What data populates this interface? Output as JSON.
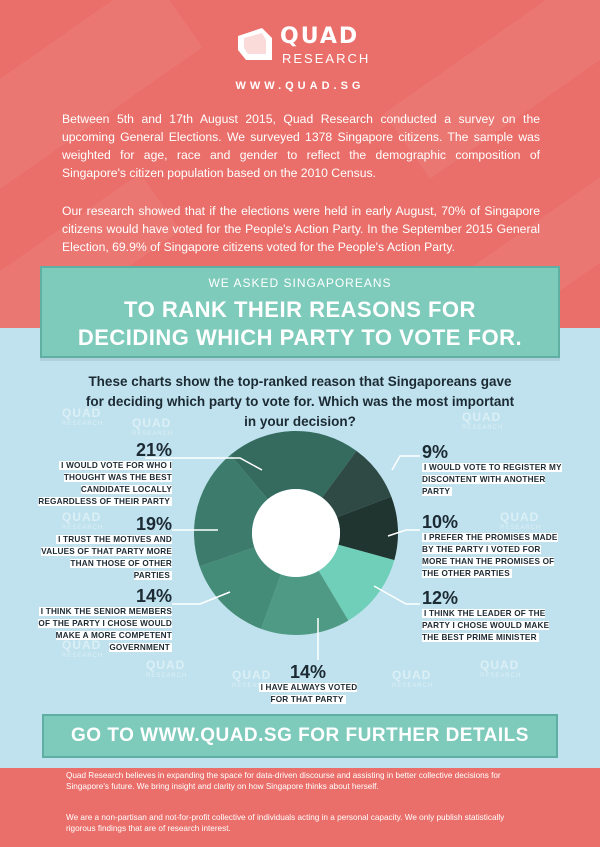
{
  "brand": {
    "name": "QUAD",
    "sub": "RESEARCH",
    "url": "WWW.QUAD.SG"
  },
  "intro": {
    "p1": "Between 5th and 17th August 2015, Quad Research conducted a survey on the upcoming General Elections. We surveyed 1378 Singapore citizens. The sample was weighted for age, race and gender to reflect the demographic composition of Singapore's citizen population based on the 2010 Census.",
    "p2": "Our research showed that if the elections were held in early August, 70% of Singapore citizens would have voted for the People's Action Party.  In the September 2015 General Election, 69.9% of Singapore citizens voted for the People's Action Party."
  },
  "banner": {
    "small": "WE ASKED SINGAPOREANS",
    "line1": "TO RANK THEIR REASONS FOR",
    "line2": "DECIDING WHICH PARTY TO VOTE FOR."
  },
  "question": "These charts show the top-ranked reason that Singaporeans gave for deciding which party to vote for. Which was the most important in your decision?",
  "chart_data": {
    "type": "pie",
    "donut": true,
    "slices": [
      {
        "pct": "21%",
        "value": 21,
        "label": "I WOULD VOTE FOR WHO I THOUGHT WAS THE BEST CANDIDATE LOCALLY REGARDLESS OF THEIR PARTY",
        "color": "#356b5f"
      },
      {
        "pct": "9%",
        "value": 9,
        "label": "I WOULD VOTE TO REGISTER MY DISCONTENT WITH ANOTHER PARTY",
        "color": "#2f4a44"
      },
      {
        "pct": "10%",
        "value": 10,
        "label": "I PREFER THE PROMISES MADE BY THE PARTY I VOTED FOR MORE THAN THE PROMISES OF THE OTHER PARTIES",
        "color": "#203530"
      },
      {
        "pct": "12%",
        "value": 12,
        "label": "I THINK THE LEADER OF THE PARTY I CHOSE WOULD MAKE THE BEST PRIME MINISTER",
        "color": "#6fcfb8"
      },
      {
        "pct": "14%",
        "value": 14,
        "label": "I HAVE ALWAYS VOTED FOR THAT PARTY",
        "color": "#4f9a84"
      },
      {
        "pct": "14%",
        "value": 14,
        "label": "I THINK THE SENIOR MEMBERS OF THE PARTY I CHOSE WOULD MAKE A MORE COMPETENT GOVERNMENT",
        "color": "#458c78"
      },
      {
        "pct": "19%",
        "value": 19,
        "label": "I TRUST THE MOTIVES AND VALUES OF THAT PARTY MORE THAN THOSE OF OTHER PARTIES",
        "color": "#3d7c6c"
      }
    ]
  },
  "cta": "GO TO WWW.QUAD.SG FOR FURTHER DETAILS",
  "footer": {
    "p1": "Quad Research believes in expanding the space for data-driven discourse and assisting in better collective decisions for Singapore's future. We bring insight and clarity on how Singapore thinks about herself.",
    "p2": "We are a non-partisan and not-for-profit collective of individuals acting in a personal capacity. We only publish statistically rigorous findings that are of research interest."
  },
  "colors": {
    "coral": "#ea6f6a",
    "sky": "#bfe2ee",
    "teal": "#7ecbbc",
    "ink": "#1c2a33"
  }
}
